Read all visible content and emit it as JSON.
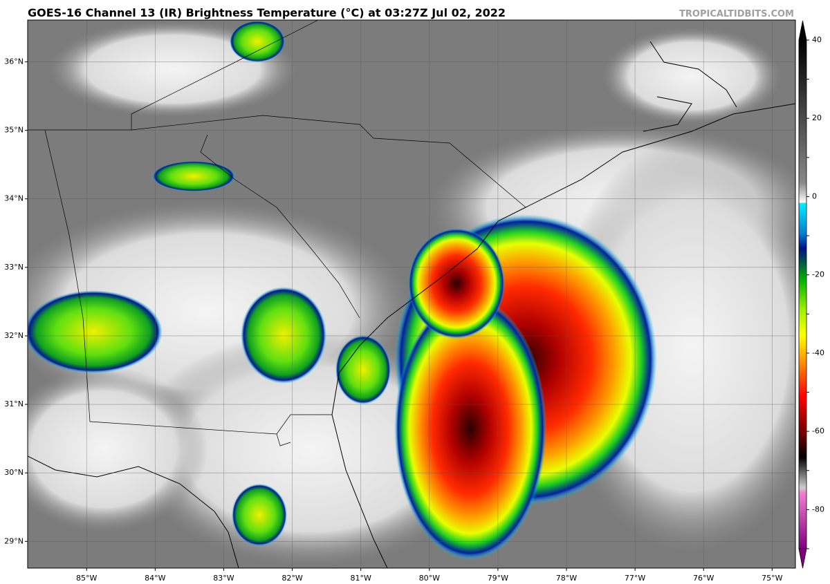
{
  "chart_data": {
    "type": "map",
    "title": "GOES-16 Channel 13 (IR) Brightness Temperature (°C) at 03:27Z Jul 02, 2022",
    "watermark": "TROPICALTIDBITS.COM",
    "xlim": [
      -85.86,
      -74.66
    ],
    "ylim": [
      28.61,
      36.61
    ],
    "xticks": [
      {
        "value": -85,
        "label": "85°W"
      },
      {
        "value": -84,
        "label": "84°W"
      },
      {
        "value": -83,
        "label": "83°W"
      },
      {
        "value": -82,
        "label": "82°W"
      },
      {
        "value": -81,
        "label": "81°W"
      },
      {
        "value": -80,
        "label": "80°W"
      },
      {
        "value": -79,
        "label": "79°W"
      },
      {
        "value": -78,
        "label": "78°W"
      },
      {
        "value": -77,
        "label": "77°W"
      },
      {
        "value": -76,
        "label": "76°W"
      },
      {
        "value": -75,
        "label": "75°W"
      }
    ],
    "yticks": [
      {
        "value": 29,
        "label": "29°N"
      },
      {
        "value": 30,
        "label": "30°N"
      },
      {
        "value": 31,
        "label": "31°N"
      },
      {
        "value": 32,
        "label": "32°N"
      },
      {
        "value": 33,
        "label": "33°N"
      },
      {
        "value": 34,
        "label": "34°N"
      },
      {
        "value": 35,
        "label": "35°N"
      },
      {
        "value": 36,
        "label": "36°N"
      }
    ],
    "grid": true,
    "colorbar": {
      "lim": [
        -90,
        40
      ],
      "ticks": [
        40,
        30,
        20,
        10,
        0,
        -10,
        -20,
        -30,
        -40,
        -50,
        -60,
        -70,
        -80,
        -90
      ]
    }
  }
}
